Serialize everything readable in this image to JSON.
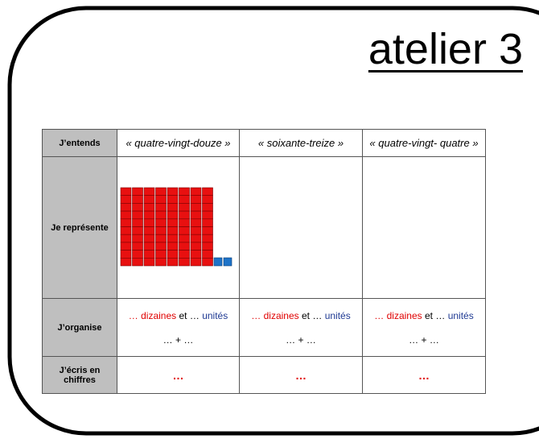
{
  "header": {
    "title": "atelier 3"
  },
  "table": {
    "rows": [
      {
        "label": "J’entends",
        "cells": [
          "« quatre-vingt-douze »",
          "« soixante-treize »",
          "« quatre-vingt- quatre »"
        ]
      },
      {
        "label": "Je représente"
      },
      {
        "label": "J’organise",
        "cells": [
          {
            "dizaines": "… dizaines",
            "et": "et …",
            "unites": "unités",
            "sum": "… + …"
          },
          {
            "dizaines": "… dizaines",
            "et": "et …",
            "unites": "unités",
            "sum": "… + …"
          },
          {
            "dizaines": "… dizaines",
            "et": "et …",
            "unites": "unités",
            "sum": "… + …"
          }
        ]
      },
      {
        "label": "J’écris en chiffres",
        "cells": [
          "…",
          "…",
          "…"
        ]
      }
    ]
  }
}
